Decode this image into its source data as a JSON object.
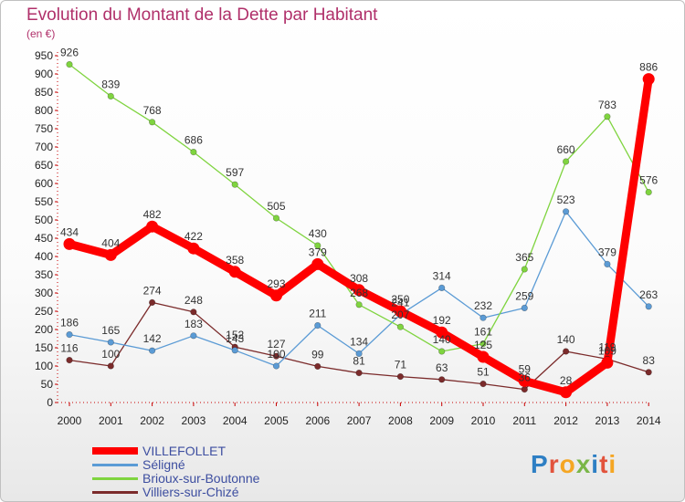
{
  "title": "Evolution du Montant de la Dette par Habitant",
  "unit": "(en €)",
  "logo": {
    "text": "Proxiti",
    "colors": [
      "#2e7fc4",
      "#e2533c",
      "#f5a623",
      "#7ab648",
      "#2e7fc4",
      "#e2533c",
      "#f5a623"
    ]
  },
  "chart_data": {
    "type": "line",
    "x": [
      "2000",
      "2001",
      "2002",
      "2003",
      "2004",
      "2005",
      "2006",
      "2007",
      "2008",
      "2009",
      "2010",
      "2011",
      "2012",
      "2013",
      "2014"
    ],
    "ylim": [
      0,
      950
    ],
    "yticks": [
      0,
      50,
      100,
      150,
      200,
      250,
      300,
      350,
      400,
      450,
      500,
      550,
      600,
      650,
      700,
      750,
      800,
      850,
      900,
      950
    ],
    "grid": false,
    "legend_position": "bottom-left",
    "series": [
      {
        "name": "VILLEFOLLET",
        "color": "#ff0000",
        "values": [
          434,
          404,
          482,
          422,
          358,
          293,
          379,
          308,
          250,
          192,
          125,
          59,
          28,
          109,
          886
        ]
      },
      {
        "name": "Séligné",
        "color": "#5b9bd5",
        "values": [
          186,
          165,
          142,
          183,
          143,
          100,
          211,
          134,
          241,
          314,
          232,
          259,
          523,
          379,
          263
        ]
      },
      {
        "name": "Brioux-sur-Boutonne",
        "color": "#7fd43f",
        "values": [
          926,
          839,
          768,
          686,
          597,
          505,
          430,
          268,
          207,
          140,
          161,
          365,
          660,
          783,
          576
        ]
      },
      {
        "name": "Villiers-sur-Chizé",
        "color": "#7b2b2b",
        "values": [
          116,
          100,
          274,
          248,
          152,
          127,
          99,
          81,
          71,
          63,
          51,
          36,
          140,
          119,
          83
        ]
      }
    ]
  }
}
